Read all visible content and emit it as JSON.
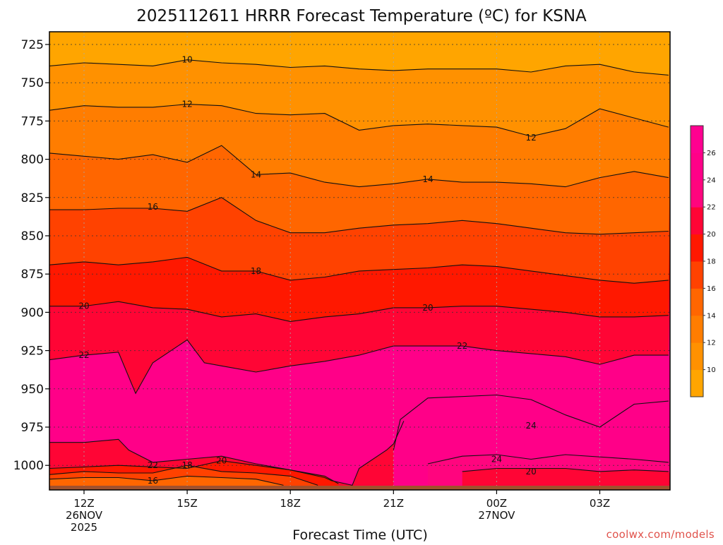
{
  "chart_data": {
    "type": "heatmap",
    "title": "2025112611 HRRR Forecast Temperature (ºC) for KSNA",
    "xlabel": "Forecast Time (UTC)",
    "ylabel": "",
    "credit": "coolwx.com/models",
    "x_ticks": [
      {
        "hour": 0,
        "lines": [
          "12Z",
          "26NOV",
          "2025"
        ]
      },
      {
        "hour": 3,
        "lines": [
          "15Z"
        ]
      },
      {
        "hour": 6,
        "lines": [
          "18Z"
        ]
      },
      {
        "hour": 9,
        "lines": [
          "21Z"
        ]
      },
      {
        "hour": 12,
        "lines": [
          "00Z",
          "27NOV"
        ]
      },
      {
        "hour": 15,
        "lines": [
          "03Z"
        ]
      }
    ],
    "y_ticks": [
      725,
      750,
      775,
      800,
      825,
      850,
      875,
      900,
      925,
      950,
      975,
      1000
    ],
    "y_axis": "pressure (hPa), decreasing upward",
    "colorbar": {
      "ticks": [
        10,
        12,
        14,
        16,
        18,
        20,
        22,
        24,
        26
      ],
      "bins": [
        {
          "min": 8,
          "max": 10,
          "color": "#ffa500"
        },
        {
          "min": 10,
          "max": 12,
          "color": "#ff9100"
        },
        {
          "min": 12,
          "max": 14,
          "color": "#ff7d00"
        },
        {
          "min": 14,
          "max": 16,
          "color": "#ff6600"
        },
        {
          "min": 16,
          "max": 18,
          "color": "#ff4200"
        },
        {
          "min": 18,
          "max": 20,
          "color": "#ff1800"
        },
        {
          "min": 20,
          "max": 22,
          "color": "#ff0535"
        },
        {
          "min": 22,
          "max": 24,
          "color": "#ff057e"
        },
        {
          "min": 24,
          "max": 26,
          "color": "#ff0088"
        },
        {
          "min": 26,
          "max": 28,
          "color": "#ff0090"
        }
      ]
    },
    "contour_labels": [
      {
        "value": 10,
        "hour": 3.0,
        "p": 735
      },
      {
        "value": 12,
        "hour": 3.0,
        "p": 764
      },
      {
        "value": 12,
        "hour": 13.0,
        "p": 786
      },
      {
        "value": 14,
        "hour": 5.0,
        "p": 810
      },
      {
        "value": 14,
        "hour": 10.0,
        "p": 813
      },
      {
        "value": 16,
        "hour": 2.0,
        "p": 831
      },
      {
        "value": 18,
        "hour": 5.0,
        "p": 873
      },
      {
        "value": 20,
        "hour": 0.0,
        "p": 896
      },
      {
        "value": 20,
        "hour": 10.0,
        "p": 897
      },
      {
        "value": 22,
        "hour": 0.0,
        "p": 928
      },
      {
        "value": 22,
        "hour": 11.0,
        "p": 922
      },
      {
        "value": 22,
        "hour": 2.0,
        "p": 1000
      },
      {
        "value": 18,
        "hour": 3.0,
        "p": 1000
      },
      {
        "value": 20,
        "hour": 4.0,
        "p": 997
      },
      {
        "value": 24,
        "hour": 13.0,
        "p": 974
      },
      {
        "value": 24,
        "hour": 12.0,
        "p": 996
      },
      {
        "value": 20,
        "hour": 13.0,
        "p": 1004
      },
      {
        "value": 16,
        "hour": 2.0,
        "p": 1010
      }
    ],
    "contours": [
      {
        "value": 10,
        "points": [
          [
            -1,
            739
          ],
          [
            0,
            737
          ],
          [
            1,
            738
          ],
          [
            2,
            739
          ],
          [
            3,
            735
          ],
          [
            4,
            737
          ],
          [
            5,
            738
          ],
          [
            6,
            740
          ],
          [
            7,
            739
          ],
          [
            8,
            741
          ],
          [
            9,
            742
          ],
          [
            10,
            741
          ],
          [
            11,
            741
          ],
          [
            12,
            741
          ],
          [
            13,
            743
          ],
          [
            14,
            739
          ],
          [
            15,
            738
          ],
          [
            16,
            743
          ],
          [
            17,
            745
          ]
        ]
      },
      {
        "value": 12,
        "points": [
          [
            -1,
            768
          ],
          [
            0,
            765
          ],
          [
            1,
            766
          ],
          [
            2,
            766
          ],
          [
            3,
            764
          ],
          [
            4,
            765
          ],
          [
            5,
            770
          ],
          [
            6,
            771
          ],
          [
            7,
            770
          ],
          [
            8,
            781
          ],
          [
            9,
            778
          ],
          [
            10,
            777
          ],
          [
            11,
            778
          ],
          [
            12,
            779
          ],
          [
            13,
            785
          ],
          [
            14,
            780
          ],
          [
            15,
            767
          ],
          [
            16,
            773
          ],
          [
            17,
            779
          ]
        ]
      },
      {
        "value": 14,
        "points": [
          [
            -1,
            796
          ],
          [
            0,
            798
          ],
          [
            1,
            800
          ],
          [
            2,
            797
          ],
          [
            3,
            802
          ],
          [
            4,
            791
          ],
          [
            5,
            810
          ],
          [
            6,
            809
          ],
          [
            7,
            815
          ],
          [
            8,
            818
          ],
          [
            9,
            816
          ],
          [
            10,
            813
          ],
          [
            11,
            815
          ],
          [
            12,
            815
          ],
          [
            13,
            816
          ],
          [
            14,
            818
          ],
          [
            15,
            812
          ],
          [
            16,
            808
          ],
          [
            17,
            812
          ]
        ]
      },
      {
        "value": 16,
        "points": [
          [
            -1,
            833
          ],
          [
            0,
            833
          ],
          [
            1,
            832
          ],
          [
            2,
            832
          ],
          [
            3,
            834
          ],
          [
            4,
            825
          ],
          [
            5,
            840
          ],
          [
            6,
            848
          ],
          [
            7,
            848
          ],
          [
            8,
            845
          ],
          [
            9,
            843
          ],
          [
            10,
            842
          ],
          [
            11,
            840
          ],
          [
            12,
            842
          ],
          [
            13,
            845
          ],
          [
            14,
            848
          ],
          [
            15,
            849
          ],
          [
            16,
            848
          ],
          [
            17,
            847
          ]
        ]
      },
      {
        "value": 18,
        "points": [
          [
            -1,
            869
          ],
          [
            0,
            867
          ],
          [
            1,
            869
          ],
          [
            2,
            867
          ],
          [
            3,
            864
          ],
          [
            4,
            873
          ],
          [
            5,
            873
          ],
          [
            6,
            879
          ],
          [
            7,
            877
          ],
          [
            8,
            873
          ],
          [
            9,
            872
          ],
          [
            10,
            871
          ],
          [
            11,
            869
          ],
          [
            12,
            870
          ],
          [
            13,
            873
          ],
          [
            14,
            876
          ],
          [
            15,
            879
          ],
          [
            16,
            881
          ],
          [
            17,
            879
          ]
        ]
      },
      {
        "value": 20,
        "points": [
          [
            -1,
            896
          ],
          [
            0,
            896
          ],
          [
            1,
            893
          ],
          [
            2,
            897
          ],
          [
            3,
            898
          ],
          [
            4,
            903
          ],
          [
            5,
            901
          ],
          [
            6,
            906
          ],
          [
            7,
            903
          ],
          [
            8,
            901
          ],
          [
            9,
            897
          ],
          [
            10,
            897
          ],
          [
            11,
            896
          ],
          [
            12,
            896
          ],
          [
            13,
            898
          ],
          [
            14,
            900
          ],
          [
            15,
            903
          ],
          [
            16,
            903
          ],
          [
            17,
            902
          ]
        ]
      },
      {
        "value": 22,
        "points": [
          [
            -1,
            931
          ],
          [
            0,
            928
          ],
          [
            1,
            926
          ],
          [
            1.5,
            953
          ],
          [
            2,
            933
          ],
          [
            3,
            918
          ],
          [
            3.5,
            933
          ],
          [
            4,
            935
          ],
          [
            5,
            939
          ],
          [
            6,
            935
          ],
          [
            7,
            932
          ],
          [
            8,
            928
          ],
          [
            9,
            922
          ],
          [
            10,
            922
          ],
          [
            11,
            922
          ],
          [
            12,
            925
          ],
          [
            13,
            927
          ],
          [
            14,
            929
          ],
          [
            15,
            934
          ],
          [
            16,
            928
          ],
          [
            17,
            928
          ]
        ]
      },
      {
        "value": 24,
        "points": [
          [
            9,
            990
          ],
          [
            9.2,
            970
          ],
          [
            10,
            956
          ],
          [
            12,
            954
          ],
          [
            13,
            957
          ],
          [
            14,
            967
          ],
          [
            15,
            975
          ],
          [
            16,
            960
          ],
          [
            17,
            958
          ]
        ]
      },
      {
        "value": 24,
        "points": [
          [
            10,
            999
          ],
          [
            11,
            994
          ],
          [
            12,
            993
          ],
          [
            13,
            996
          ],
          [
            14,
            993
          ],
          [
            16,
            996
          ],
          [
            17,
            998
          ]
        ]
      },
      {
        "value": 20,
        "points": [
          [
            11,
            1004
          ],
          [
            12,
            1002
          ],
          [
            13,
            1002
          ],
          [
            14,
            1002
          ],
          [
            15,
            1004
          ],
          [
            16,
            1003
          ],
          [
            17,
            1004
          ]
        ]
      },
      {
        "value": 22,
        "points": [
          [
            -1,
            985
          ],
          [
            0,
            985
          ],
          [
            1,
            983
          ],
          [
            1.3,
            990
          ],
          [
            2,
            998
          ],
          [
            3,
            996
          ],
          [
            4,
            994
          ],
          [
            5,
            999
          ],
          [
            6,
            1003
          ],
          [
            7,
            1008
          ],
          [
            7.2,
            1010
          ],
          [
            7.8,
            1013
          ],
          [
            8,
            1002
          ],
          [
            8.8,
            990
          ],
          [
            9,
            986
          ],
          [
            9.3,
            971
          ]
        ]
      },
      {
        "value": 20,
        "points": [
          [
            -1,
            1002
          ],
          [
            0,
            1001
          ],
          [
            1,
            1000
          ],
          [
            2,
            1001
          ],
          [
            3,
            1002
          ],
          [
            4,
            997
          ],
          [
            5,
            1000
          ],
          [
            6,
            1003
          ],
          [
            7,
            1007
          ],
          [
            7.4,
            1012
          ]
        ]
      },
      {
        "value": 18,
        "points": [
          [
            -1,
            1006
          ],
          [
            0,
            1004
          ],
          [
            1,
            1005
          ],
          [
            2,
            1005
          ],
          [
            3,
            1000
          ],
          [
            4,
            1004
          ],
          [
            5,
            1005
          ],
          [
            6,
            1007
          ],
          [
            6.8,
            1013
          ]
        ]
      },
      {
        "value": 16,
        "points": [
          [
            -1,
            1009
          ],
          [
            0,
            1008
          ],
          [
            1,
            1008
          ],
          [
            2,
            1010
          ],
          [
            3,
            1007
          ],
          [
            4,
            1008
          ],
          [
            5,
            1009
          ],
          [
            5.8,
            1013
          ]
        ]
      }
    ]
  }
}
